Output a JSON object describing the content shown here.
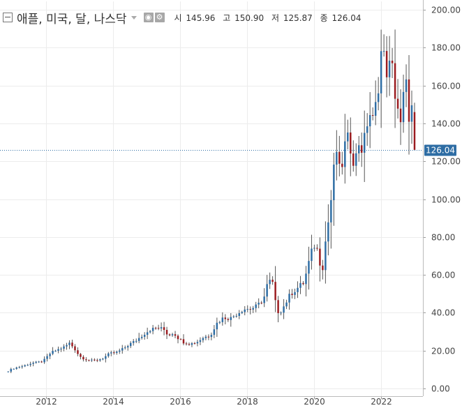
{
  "header": {
    "title": "애플, 미국, 달, 나스닥",
    "ohlc": [
      {
        "label": "시",
        "value": "145.96"
      },
      {
        "label": "고",
        "value": "150.90"
      },
      {
        "label": "저",
        "value": "125.87"
      },
      {
        "label": "종",
        "value": "126.04"
      }
    ]
  },
  "colors": {
    "up": "#2e6da4",
    "down": "#9b1b1f",
    "wick": "#555555",
    "price_line": "#2e6da4",
    "price_label_bg": "#2e6da4"
  },
  "icons": [
    "collapse-icon",
    "dropdown-caret-icon",
    "eye-icon",
    "gear-icon"
  ],
  "chart_data": {
    "type": "candlestick",
    "title": "애플, 미국, 달, 나스닥",
    "interval": "monthly",
    "last_price": 126.04,
    "last_price_label": "126.04",
    "ylim": [
      0,
      200
    ],
    "yticks": [
      0,
      20,
      40,
      60,
      80,
      100,
      120,
      140,
      160,
      180,
      200
    ],
    "ytick_labels": [
      "0.00",
      "20.00",
      "40.00",
      "60.00",
      "80.00",
      "100.00",
      "120.00",
      "140.00",
      "160.00",
      "180.00",
      "200.00"
    ],
    "xticks": [
      "2012",
      "2014",
      "2016",
      "2018",
      "2020",
      "2022"
    ],
    "x_domain": [
      2010.83,
      2023.2
    ],
    "grid": true,
    "close_path": [
      [
        2010.87,
        9.2
      ],
      [
        2011.0,
        10.5
      ],
      [
        2011.3,
        11.8
      ],
      [
        2011.6,
        13.5
      ],
      [
        2011.9,
        14.2
      ],
      [
        2012.15,
        19.0
      ],
      [
        2012.35,
        20.5
      ],
      [
        2012.55,
        22.0
      ],
      [
        2012.7,
        24.0
      ],
      [
        2012.85,
        21.0
      ],
      [
        2013.0,
        17.0
      ],
      [
        2013.15,
        15.5
      ],
      [
        2013.3,
        14.8
      ],
      [
        2013.5,
        14.8
      ],
      [
        2013.7,
        16.0
      ],
      [
        2013.9,
        18.5
      ],
      [
        2014.1,
        19.0
      ],
      [
        2014.3,
        21.0
      ],
      [
        2014.5,
        23.5
      ],
      [
        2014.7,
        25.5
      ],
      [
        2014.9,
        28.5
      ],
      [
        2015.1,
        31.0
      ],
      [
        2015.3,
        32.0
      ],
      [
        2015.5,
        31.5
      ],
      [
        2015.65,
        28.0
      ],
      [
        2015.8,
        29.5
      ],
      [
        2015.95,
        26.5
      ],
      [
        2016.1,
        24.5
      ],
      [
        2016.3,
        23.5
      ],
      [
        2016.5,
        24.5
      ],
      [
        2016.7,
        27.0
      ],
      [
        2016.9,
        28.0
      ],
      [
        2017.1,
        34.5
      ],
      [
        2017.3,
        37.5
      ],
      [
        2017.5,
        37.0
      ],
      [
        2017.7,
        39.5
      ],
      [
        2017.9,
        42.0
      ],
      [
        2018.1,
        42.0
      ],
      [
        2018.3,
        43.5
      ],
      [
        2018.5,
        47.5
      ],
      [
        2018.62,
        56.0
      ],
      [
        2018.75,
        57.0
      ],
      [
        2018.85,
        45.0
      ],
      [
        2018.95,
        39.5
      ],
      [
        2019.1,
        43.5
      ],
      [
        2019.3,
        50.0
      ],
      [
        2019.5,
        53.0
      ],
      [
        2019.7,
        56.0
      ],
      [
        2019.85,
        67.0
      ],
      [
        2019.95,
        73.5
      ],
      [
        2020.05,
        77.0
      ],
      [
        2020.15,
        68.0
      ],
      [
        2020.25,
        63.0
      ],
      [
        2020.35,
        79.0
      ],
      [
        2020.45,
        91.0
      ],
      [
        2020.55,
        106.0
      ],
      [
        2020.65,
        129.0
      ],
      [
        2020.75,
        115.0
      ],
      [
        2020.85,
        119.0
      ],
      [
        2020.95,
        132.0
      ],
      [
        2021.05,
        131.0
      ],
      [
        2021.15,
        121.0
      ],
      [
        2021.25,
        122.0
      ],
      [
        2021.35,
        131.0
      ],
      [
        2021.45,
        125.0
      ],
      [
        2021.55,
        137.0
      ],
      [
        2021.65,
        146.0
      ],
      [
        2021.75,
        141.0
      ],
      [
        2021.85,
        150.0
      ],
      [
        2021.95,
        165.0
      ],
      [
        2022.0,
        177.5
      ],
      [
        2022.1,
        174.5
      ],
      [
        2022.2,
        165.0
      ],
      [
        2022.3,
        174.5
      ],
      [
        2022.4,
        157.5
      ],
      [
        2022.5,
        148.5
      ],
      [
        2022.6,
        136.5
      ],
      [
        2022.7,
        162.5
      ],
      [
        2022.8,
        157.0
      ],
      [
        2022.85,
        138.5
      ],
      [
        2022.92,
        148.0
      ],
      [
        2023.0,
        126.04
      ]
    ]
  }
}
